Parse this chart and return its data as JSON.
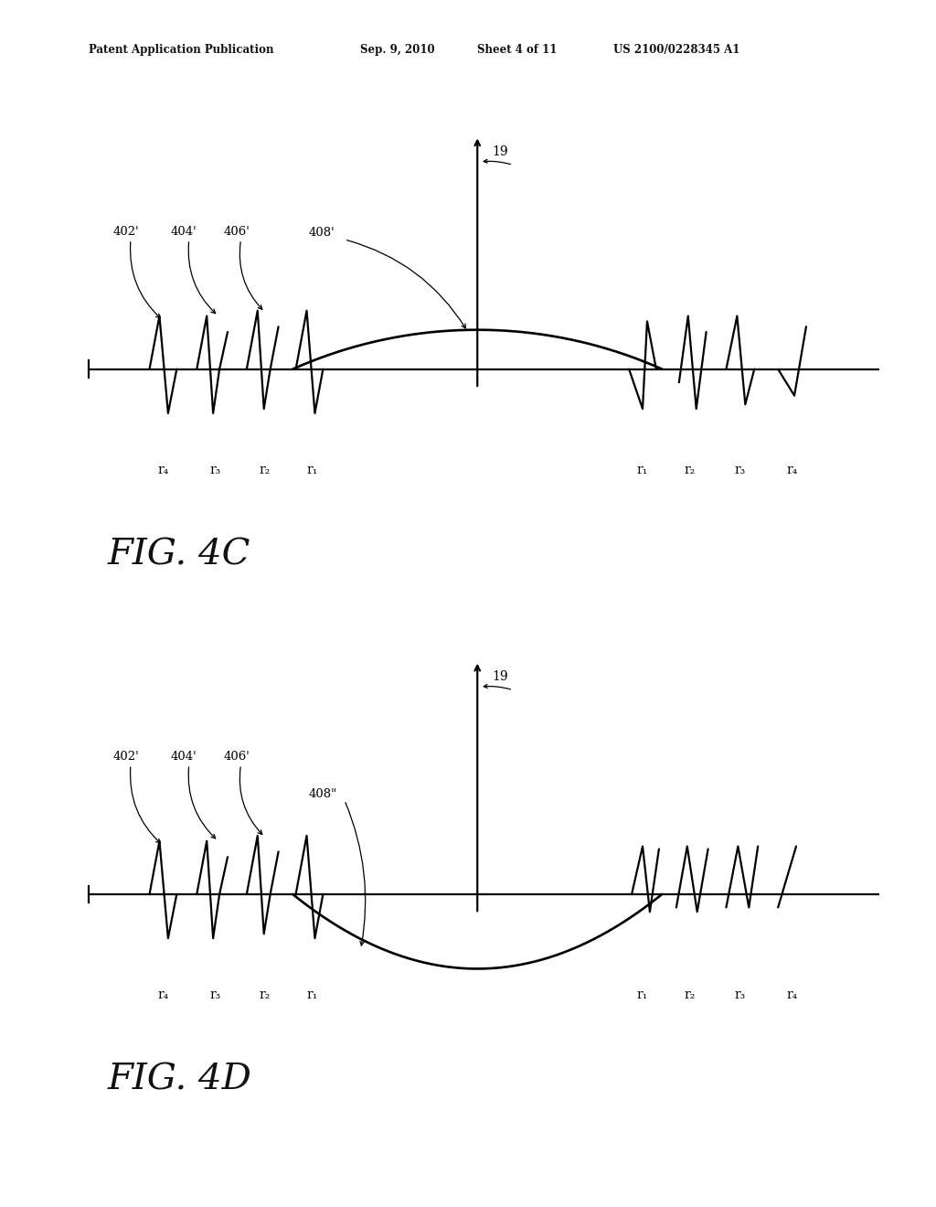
{
  "background_color": "#ffffff",
  "header_left": "Patent Application Publication",
  "header_date": "Sep. 9, 2010",
  "header_sheet": "Sheet 4 of 11",
  "header_patent": "US 2100/0228345 A1",
  "lc": "#000000",
  "lw": 1.6,
  "fig_c_label": "FIG. 4C",
  "fig_d_label": "FIG. 4D",
  "r_left": [
    "r₄",
    "r₃",
    "r₂",
    "r₁"
  ],
  "r_right": [
    "r₁",
    "r₂",
    "r₃",
    "r₄"
  ],
  "label_19": "19",
  "label_402": "402'",
  "label_404": "404'",
  "label_406": "406'",
  "label_408c": "408'",
  "label_408d": "408\""
}
